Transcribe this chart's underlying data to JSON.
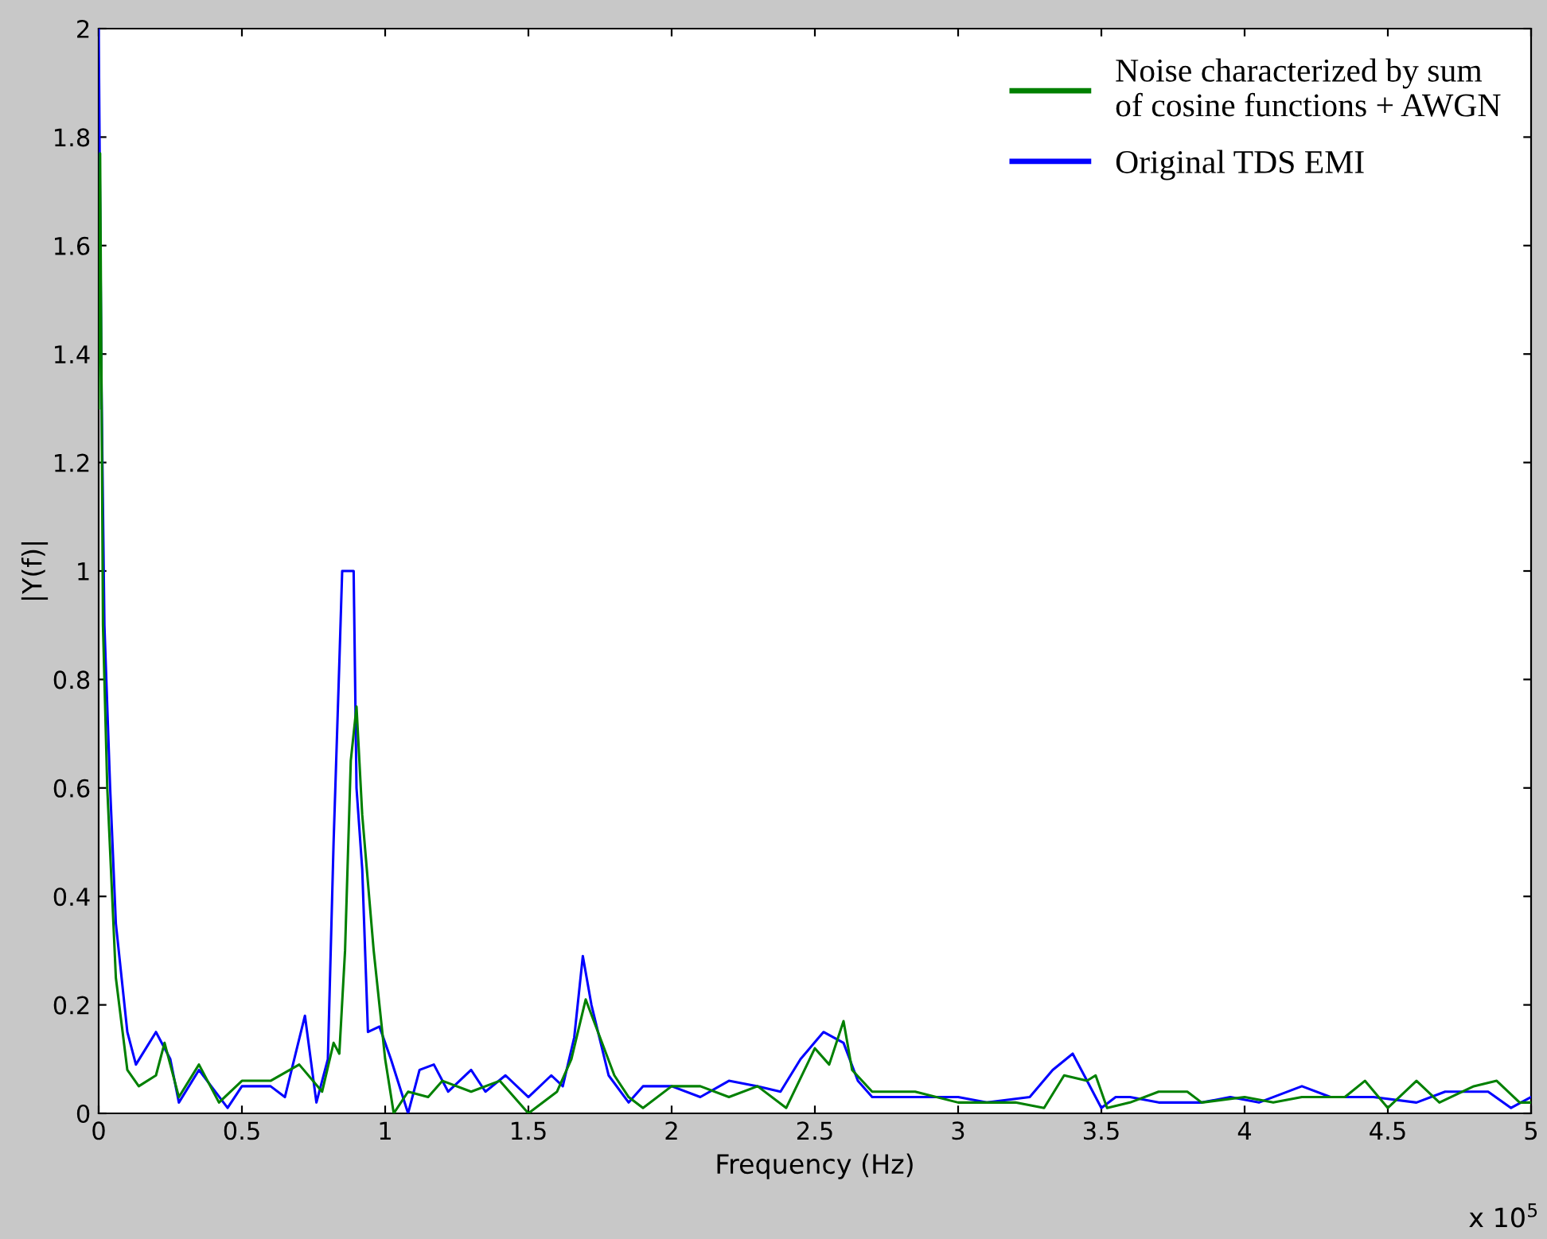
{
  "chart_data": {
    "type": "line",
    "xlabel": "Frequency (Hz)",
    "ylabel": "|Y(f)|",
    "annotations": [
      "x 10$^{5}$"
    ],
    "xlim": [
      0,
      5
    ],
    "xticks": [
      0,
      0.5,
      1,
      1.5,
      2,
      2.5,
      3,
      3.5,
      4,
      4.5,
      5
    ],
    "ylim": [
      0,
      2
    ],
    "yticks": [
      0,
      0.2,
      0.4,
      0.6,
      0.8,
      1,
      1.2,
      1.4,
      1.6,
      1.8,
      2
    ],
    "grid": false,
    "legend": "top right",
    "series": [
      {
        "name": "Noise characterized by sum\nof cosine functions + AWGN",
        "color": "#008000",
        "x": [
          0,
          0.005,
          0.015,
          0.03,
          0.06,
          0.1,
          0.14,
          0.2,
          0.23,
          0.28,
          0.35,
          0.42,
          0.5,
          0.6,
          0.7,
          0.78,
          0.82,
          0.84,
          0.86,
          0.88,
          0.9,
          0.92,
          0.96,
          1.0,
          1.03,
          1.08,
          1.15,
          1.2,
          1.3,
          1.4,
          1.5,
          1.6,
          1.65,
          1.7,
          1.75,
          1.8,
          1.85,
          1.9,
          2.0,
          2.1,
          2.2,
          2.3,
          2.4,
          2.5,
          2.55,
          2.6,
          2.63,
          2.7,
          2.85,
          3.0,
          3.1,
          3.2,
          3.3,
          3.37,
          3.45,
          3.48,
          3.52,
          3.6,
          3.7,
          3.8,
          3.85,
          4.0,
          4.1,
          4.2,
          4.35,
          4.42,
          4.5,
          4.6,
          4.68,
          4.8,
          4.88,
          4.96,
          5.0
        ],
        "values": [
          1.3,
          1.77,
          0.9,
          0.6,
          0.25,
          0.08,
          0.05,
          0.07,
          0.13,
          0.03,
          0.09,
          0.02,
          0.06,
          0.06,
          0.09,
          0.04,
          0.13,
          0.11,
          0.3,
          0.65,
          0.75,
          0.55,
          0.3,
          0.1,
          0.0,
          0.04,
          0.03,
          0.06,
          0.04,
          0.06,
          0.0,
          0.04,
          0.1,
          0.21,
          0.14,
          0.07,
          0.03,
          0.01,
          0.05,
          0.05,
          0.03,
          0.05,
          0.01,
          0.12,
          0.09,
          0.17,
          0.08,
          0.04,
          0.04,
          0.02,
          0.02,
          0.02,
          0.01,
          0.07,
          0.06,
          0.07,
          0.01,
          0.02,
          0.04,
          0.04,
          0.02,
          0.03,
          0.02,
          0.03,
          0.03,
          0.06,
          0.01,
          0.06,
          0.02,
          0.05,
          0.06,
          0.02,
          0.02
        ]
      },
      {
        "name": "Original TDS EMI",
        "color": "#0000ff",
        "x": [
          0,
          0.01,
          0.02,
          0.04,
          0.06,
          0.1,
          0.13,
          0.2,
          0.25,
          0.28,
          0.35,
          0.45,
          0.5,
          0.6,
          0.65,
          0.72,
          0.76,
          0.8,
          0.82,
          0.84,
          0.85,
          0.89,
          0.9,
          0.92,
          0.94,
          0.98,
          1.02,
          1.08,
          1.12,
          1.17,
          1.22,
          1.3,
          1.35,
          1.42,
          1.5,
          1.58,
          1.62,
          1.66,
          1.69,
          1.72,
          1.78,
          1.85,
          1.9,
          2.0,
          2.1,
          2.2,
          2.3,
          2.38,
          2.45,
          2.53,
          2.6,
          2.65,
          2.7,
          2.85,
          3.0,
          3.1,
          3.25,
          3.33,
          3.4,
          3.45,
          3.5,
          3.55,
          3.6,
          3.7,
          3.85,
          3.95,
          4.05,
          4.2,
          4.3,
          4.45,
          4.6,
          4.7,
          4.85,
          4.93,
          5.0
        ],
        "values": [
          2.0,
          1.33,
          0.9,
          0.6,
          0.35,
          0.15,
          0.09,
          0.15,
          0.1,
          0.02,
          0.08,
          0.01,
          0.05,
          0.05,
          0.03,
          0.18,
          0.02,
          0.1,
          0.5,
          0.83,
          1.0,
          1.0,
          0.6,
          0.45,
          0.15,
          0.16,
          0.1,
          0.0,
          0.08,
          0.09,
          0.04,
          0.08,
          0.04,
          0.07,
          0.03,
          0.07,
          0.05,
          0.14,
          0.29,
          0.2,
          0.07,
          0.02,
          0.05,
          0.05,
          0.03,
          0.06,
          0.05,
          0.04,
          0.1,
          0.15,
          0.13,
          0.06,
          0.03,
          0.03,
          0.03,
          0.02,
          0.03,
          0.08,
          0.11,
          0.06,
          0.01,
          0.03,
          0.03,
          0.02,
          0.02,
          0.03,
          0.02,
          0.05,
          0.03,
          0.03,
          0.02,
          0.04,
          0.04,
          0.01,
          0.03
        ]
      }
    ]
  }
}
